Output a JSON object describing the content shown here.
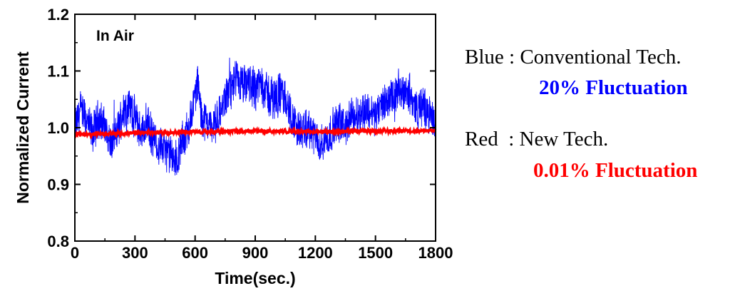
{
  "chart_data": {
    "type": "line",
    "xlabel": "Time(sec.)",
    "ylabel": "Normalized Current",
    "xlim": [
      0,
      1800
    ],
    "ylim": [
      0.8,
      1.2
    ],
    "x_ticks": [
      "0",
      "300",
      "600",
      "900",
      "1200",
      "1500",
      "1800"
    ],
    "y_ticks": [
      "0.8",
      "0.9",
      "1.0",
      "1.1",
      "1.2"
    ],
    "annotation": "In Air",
    "grid": false,
    "series": [
      {
        "name": "Conventional Tech.",
        "color": "#0000ff",
        "x": [
          0,
          30,
          60,
          90,
          120,
          150,
          180,
          210,
          240,
          270,
          300,
          330,
          360,
          390,
          420,
          450,
          480,
          510,
          540,
          570,
          600,
          615,
          630,
          660,
          690,
          720,
          750,
          780,
          810,
          840,
          870,
          900,
          930,
          960,
          990,
          1020,
          1050,
          1080,
          1110,
          1140,
          1170,
          1200,
          1230,
          1260,
          1290,
          1320,
          1350,
          1380,
          1410,
          1440,
          1470,
          1500,
          1530,
          1560,
          1590,
          1620,
          1650,
          1680,
          1710,
          1740,
          1770,
          1800
        ],
        "center": [
          1.0,
          1.03,
          1.01,
          0.99,
          1.02,
          1.0,
          0.97,
          0.99,
          1.03,
          1.04,
          1.02,
          0.99,
          1.01,
          0.98,
          0.97,
          0.96,
          0.95,
          0.94,
          0.98,
          1.0,
          1.06,
          1.08,
          1.02,
          1.01,
          1.0,
          1.02,
          1.05,
          1.07,
          1.08,
          1.07,
          1.08,
          1.07,
          1.08,
          1.06,
          1.05,
          1.06,
          1.05,
          1.02,
          1.0,
          0.99,
          1.0,
          0.98,
          0.97,
          0.98,
          1.0,
          1.01,
          1.0,
          1.02,
          1.02,
          1.03,
          1.03,
          1.02,
          1.04,
          1.05,
          1.05,
          1.06,
          1.07,
          1.05,
          1.03,
          1.04,
          1.02,
          1.01
        ],
        "fluctuation": "20% Fluctuation"
      },
      {
        "name": "New Tech.",
        "color": "#ff0000",
        "x": [
          0,
          300,
          600,
          900,
          1200,
          1500,
          1800
        ],
        "center": [
          0.988,
          0.991,
          0.992,
          0.994,
          0.993,
          0.994,
          0.995
        ],
        "fluctuation": "0.01% Fluctuation"
      }
    ]
  },
  "legend": {
    "blue_line": "Blue : Conventional Tech.",
    "blue_fluct": "20% Fluctuation",
    "red_line": "Red  : New Tech.",
    "red_fluct": "0.01% Fluctuation"
  },
  "colors": {
    "blue": "#0000ff",
    "red": "#ff0000"
  }
}
